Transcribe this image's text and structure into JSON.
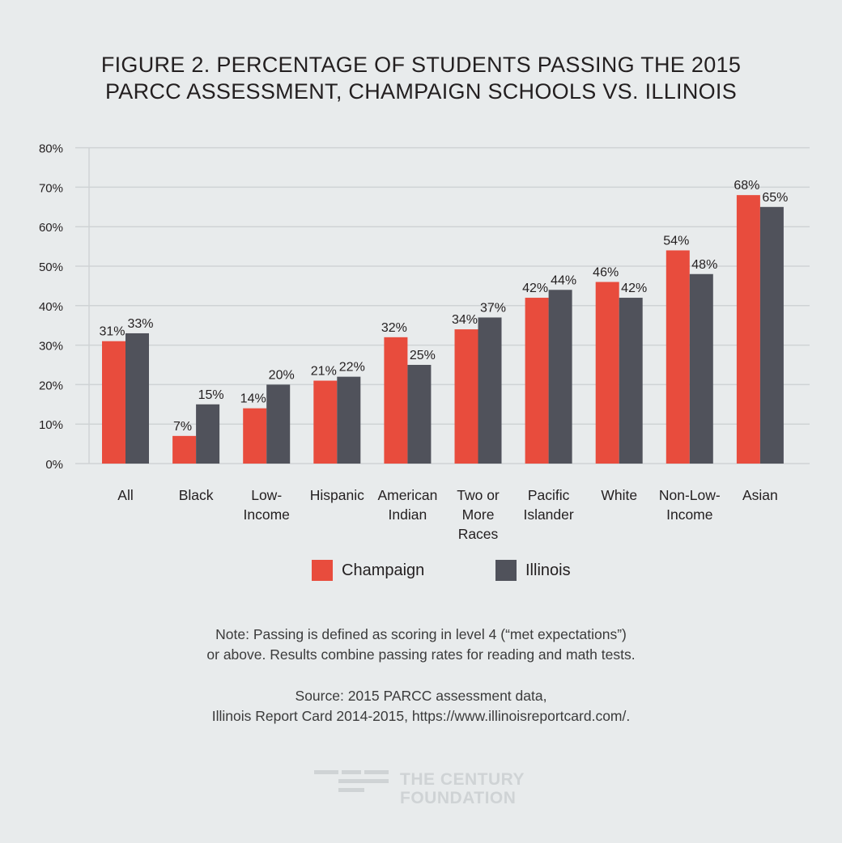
{
  "title_lines": [
    "FIGURE 2. PERCENTAGE OF STUDENTS PASSING THE 2015",
    "PARCC ASSESSMENT, CHAMPAIGN SCHOOLS VS. ILLINOIS"
  ],
  "chart_data": {
    "type": "bar",
    "categories": [
      [
        "All"
      ],
      [
        "Black"
      ],
      [
        "Low-",
        "Income"
      ],
      [
        "Hispanic"
      ],
      [
        "American",
        "Indian"
      ],
      [
        "Two or",
        "More",
        "Races"
      ],
      [
        "Pacific",
        "Islander"
      ],
      [
        "White"
      ],
      [
        "Non-Low-",
        "Income"
      ],
      [
        "Asian"
      ]
    ],
    "series": [
      {
        "name": "Champaign",
        "color": "#e84c3d",
        "values": [
          31,
          7,
          14,
          21,
          32,
          34,
          42,
          46,
          54,
          68
        ],
        "labels": [
          "31%",
          "7%",
          "14%",
          "21%",
          "32%",
          "34%",
          "42%",
          "46%",
          "54%",
          "68%"
        ]
      },
      {
        "name": "Illinois",
        "color": "#50525b",
        "values": [
          33,
          15,
          20,
          22,
          25,
          37,
          44,
          42,
          48,
          65
        ],
        "labels": [
          "33%",
          "15%",
          "20%",
          "22%",
          "25%",
          "37%",
          "44%",
          "42%",
          "48%",
          "65%"
        ]
      }
    ],
    "ylim": [
      0,
      80
    ],
    "yticks": [
      "0%",
      "10%",
      "20%",
      "30%",
      "40%",
      "50%",
      "60%",
      "70%",
      "80%"
    ],
    "grid": true,
    "legend_position": "bottom"
  },
  "legend": {
    "champaign": "Champaign",
    "illinois": "Illinois"
  },
  "note_lines": [
    "Note: Passing is defined as scoring in level 4 (“met expectations”)",
    "or above. Results combine passing rates for reading and math tests."
  ],
  "source_lines": [
    "Source: 2015 PARCC assessment data,",
    "Illinois Report Card 2014-2015, https://www.illinoisreportcard.com/."
  ],
  "brand_lines": [
    "THE CENTURY",
    "FOUNDATION"
  ],
  "colors": {
    "champaign": "#e84c3d",
    "illinois": "#50525b",
    "background": "#e8ebec",
    "grid": "#cfd3d5"
  }
}
